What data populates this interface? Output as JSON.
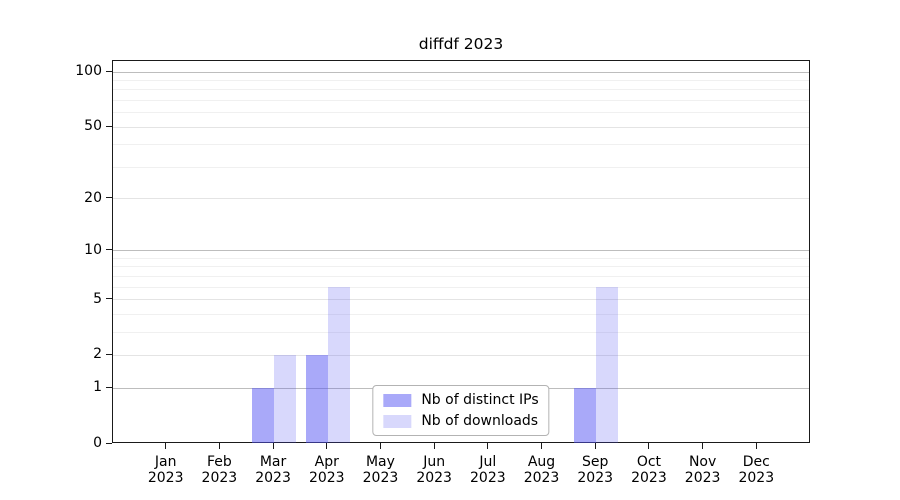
{
  "chart_data": {
    "type": "bar",
    "title": "diffdf 2023",
    "year_label": "2023",
    "categories": [
      "Jan",
      "Feb",
      "Mar",
      "Apr",
      "May",
      "Jun",
      "Jul",
      "Aug",
      "Sep",
      "Oct",
      "Nov",
      "Dec"
    ],
    "series": [
      {
        "name": "Nb of distinct IPs",
        "key": "distinct-ips",
        "color": "#aaaaf9",
        "fill_rgba": "rgba(83,83,243,0.5)",
        "values": [
          0,
          0,
          1,
          2,
          0,
          0,
          0,
          0,
          1,
          0,
          0,
          0
        ]
      },
      {
        "name": "Nb of downloads",
        "key": "downloads",
        "color": "#d8d8fa",
        "fill_rgba": "rgba(82,82,243,0.225)",
        "values": [
          0,
          0,
          2,
          6,
          0,
          0,
          0,
          0,
          6,
          0,
          0,
          0
        ]
      }
    ],
    "yscale": "log1p",
    "ylim": [
      0,
      115
    ],
    "y_ticks": [
      0,
      1,
      2,
      5,
      10,
      20,
      50,
      100
    ],
    "y_decade_ticks": [
      1,
      10,
      100
    ],
    "y_minor_gridlines": [
      3,
      4,
      6,
      7,
      8,
      9,
      30,
      40,
      60,
      70,
      80,
      90
    ],
    "grid": "horizontal",
    "legend_position": "lower center"
  },
  "colors": {
    "background": "#ffffff",
    "spine": "#1a1a1a",
    "grid_decade": "#bdbdbd",
    "grid_major": "#e4e4e4",
    "grid_minor": "#f0f0f0",
    "legend_border": "#b3b3b3",
    "text": "#000000"
  }
}
